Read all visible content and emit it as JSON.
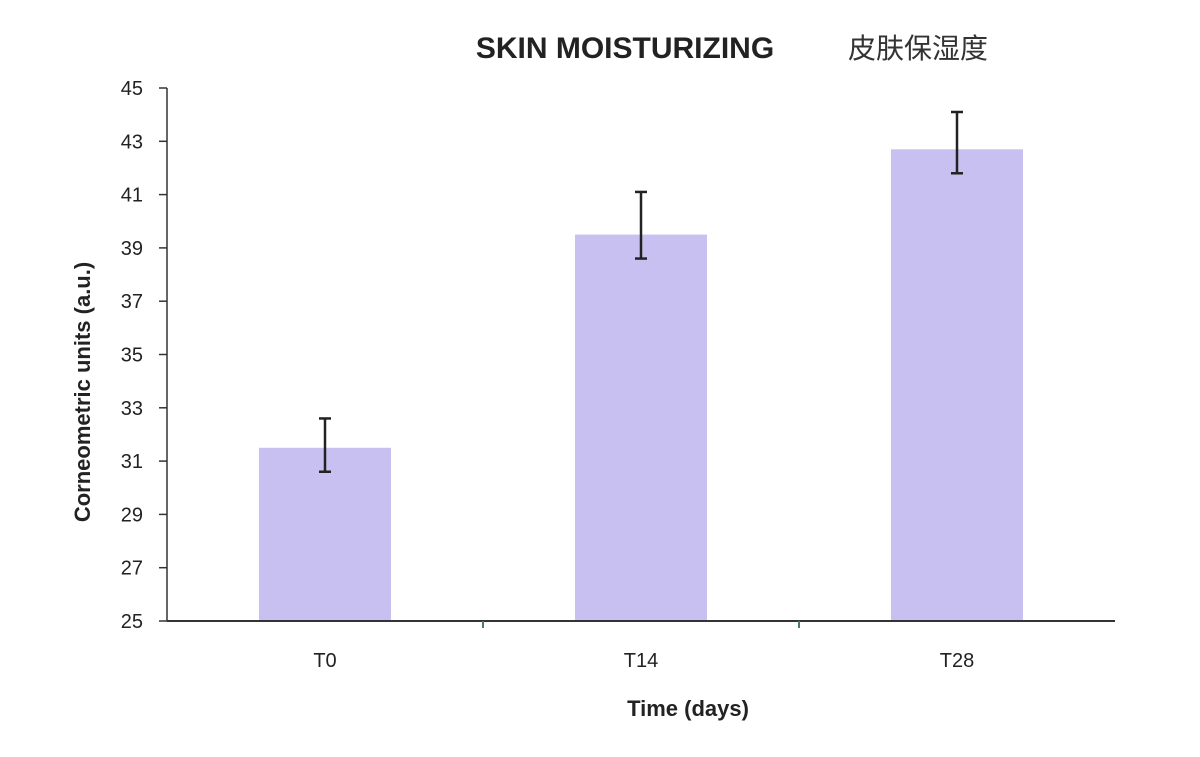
{
  "chart_data": {
    "type": "bar",
    "title": "SKIN MOISTURIZING",
    "subtitle": "皮肤保湿度",
    "xlabel": "Time (days)",
    "ylabel": "Corneometric units (a.u.)",
    "categories": [
      "T0",
      "T14",
      "T28"
    ],
    "values": [
      31.5,
      39.5,
      42.7
    ],
    "error_bars": [
      {
        "low": 30.6,
        "high": 32.6
      },
      {
        "low": 38.6,
        "high": 41.1
      },
      {
        "low": 41.8,
        "high": 44.1
      }
    ],
    "ylim": [
      25,
      45
    ],
    "yticks": [
      25,
      27,
      29,
      31,
      33,
      35,
      37,
      39,
      41,
      43,
      45
    ],
    "grid": false,
    "legend": "none",
    "colors": {
      "bar": "#c8c0f0",
      "axis": "#333333",
      "error_bar": "#222222"
    }
  }
}
